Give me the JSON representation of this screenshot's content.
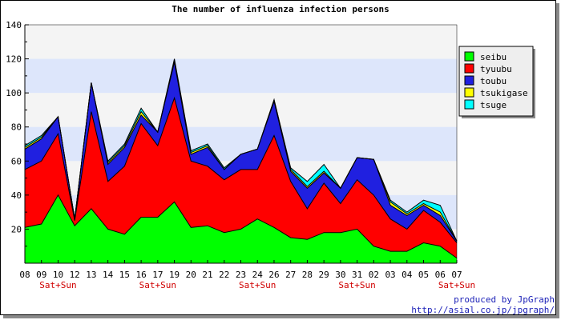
{
  "chart_data": {
    "type": "area",
    "stacked": true,
    "title": "The number of influenza infection persons",
    "xlabel": "",
    "ylabel": "",
    "ylim": [
      0,
      140
    ],
    "yticks": [
      20,
      40,
      60,
      80,
      100,
      120,
      140
    ],
    "categories": [
      "08",
      "09",
      "10",
      "12",
      "13",
      "14",
      "15",
      "16",
      "17",
      "19",
      "20",
      "21",
      "22",
      "23",
      "24",
      "26",
      "27",
      "28",
      "29",
      "30",
      "31",
      "02",
      "03",
      "04",
      "05",
      "06",
      "07"
    ],
    "weekend_labels": [
      {
        "category": "10",
        "text": "Sat+Sun"
      },
      {
        "category": "17",
        "text": "Sat+Sun"
      },
      {
        "category": "24",
        "text": "Sat+Sun"
      },
      {
        "category": "31",
        "text": "Sat+Sun"
      },
      {
        "category": "07",
        "text": "Sat+Sun"
      }
    ],
    "legend_position": "right",
    "grid": "horizontal bands",
    "series": [
      {
        "name": "seibu",
        "color": "#00ff00",
        "values": [
          21,
          23,
          40,
          22,
          32,
          20,
          17,
          27,
          27,
          36,
          21,
          22,
          18,
          20,
          26,
          21,
          15,
          14,
          18,
          18,
          20,
          10,
          7,
          7,
          12,
          10,
          3
        ]
      },
      {
        "name": "tyuubu",
        "color": "#ff0000",
        "values": [
          34,
          37,
          36,
          3,
          57,
          28,
          40,
          55,
          42,
          61,
          39,
          35,
          31,
          35,
          29,
          54,
          33,
          18,
          29,
          17,
          29,
          30,
          19,
          13,
          19,
          14,
          9
        ]
      },
      {
        "name": "toubu",
        "color": "#2020e0",
        "values": [
          12,
          13,
          10,
          1,
          17,
          10,
          11,
          5,
          8,
          21,
          4,
          11,
          6,
          9,
          12,
          20,
          6,
          12,
          6,
          9,
          13,
          21,
          8,
          8,
          3,
          4,
          1
        ]
      },
      {
        "name": "tsukigase",
        "color": "#ffff00",
        "values": [
          1,
          1,
          0,
          0,
          0,
          1,
          1,
          2,
          0,
          1,
          1,
          1,
          0,
          0,
          0,
          1,
          1,
          1,
          1,
          0,
          0,
          0,
          2,
          1,
          1,
          2,
          0
        ]
      },
      {
        "name": "tsuge",
        "color": "#00ffff",
        "values": [
          1,
          1,
          0,
          0,
          0,
          1,
          1,
          2,
          0,
          1,
          1,
          1,
          1,
          0,
          0,
          0,
          1,
          3,
          4,
          0,
          0,
          0,
          1,
          1,
          2,
          4,
          0
        ]
      }
    ]
  },
  "credits": {
    "line1": "produced by JpGraph",
    "line2": "http://asial.co.jp/jpgraph/"
  }
}
